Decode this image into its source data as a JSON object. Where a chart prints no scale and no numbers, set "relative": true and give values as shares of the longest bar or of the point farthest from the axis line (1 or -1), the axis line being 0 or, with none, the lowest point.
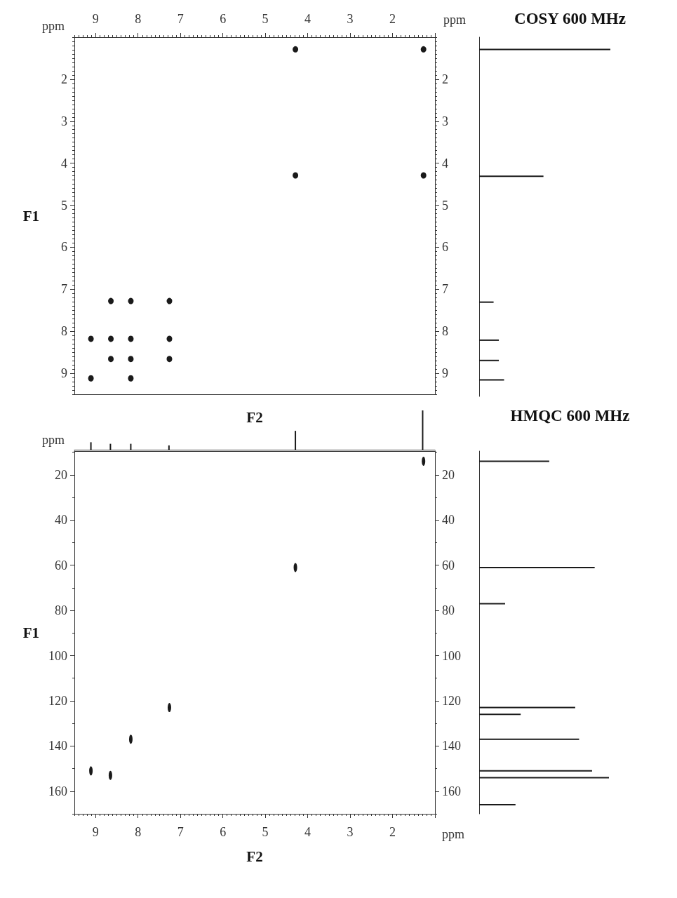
{
  "chart_data": [
    {
      "type": "scatter",
      "xlabel": "F2",
      "x2label": "ppm",
      "ylabel": "F1",
      "annotations": [
        "ppm"
      ],
      "x": [
        4.29,
        1.27,
        4.29,
        1.27,
        8.64,
        8.17,
        7.26,
        9.11,
        8.64,
        8.17,
        7.26,
        8.64,
        8.17,
        7.26,
        9.11,
        8.17
      ],
      "values": [
        1.29,
        1.29,
        4.29,
        4.29,
        7.28,
        7.28,
        7.28,
        8.18,
        8.18,
        8.18,
        8.18,
        8.66,
        8.66,
        8.66,
        9.12,
        9.12
      ],
      "color": "#1a1a1a",
      "marker": "circle",
      "xlim": [
        9.5,
        1.0
      ],
      "x2lim": [
        9.5,
        1.0
      ],
      "x2ticks": [
        9,
        8,
        7,
        6,
        5,
        4,
        3,
        2,
        {
          "value": 1,
          "label": null
        }
      ],
      "ylim": [
        9.5,
        1.0
      ],
      "yticks": [
        2,
        3,
        4,
        5,
        6,
        7,
        8,
        9
      ],
      "y2lim": [
        9.5,
        1.0
      ],
      "y2ticks": [
        2,
        3,
        4,
        5,
        6,
        7,
        8,
        9
      ]
    },
    {
      "type": "bar",
      "orientation": "horizontal",
      "relative": true,
      "title": "COSY 600 MHz",
      "x": [
        1.29,
        4.29,
        7.27,
        8.17,
        8.65,
        9.11
      ],
      "values": [
        1,
        0.49,
        0.11,
        0.15,
        0.15,
        0.19
      ],
      "color": "#1a1a1a",
      "ylim": [
        9.5,
        1.0
      ]
    },
    {
      "type": "bar",
      "relative": true,
      "x": [
        9.11,
        8.65,
        8.17,
        7.27,
        4.29,
        1.29
      ],
      "values": [
        0.19,
        0.15,
        0.15,
        0.11,
        0.48,
        1
      ],
      "color": "#1a1a1a",
      "xlim": [
        9.5,
        1.0
      ]
    },
    {
      "type": "scatter",
      "xlabel": "F2",
      "ylabel": "F1",
      "annotations": [
        "ppm",
        "ppm"
      ],
      "x": [
        1.27,
        4.29,
        7.26,
        8.17,
        9.11,
        8.65
      ],
      "values": [
        14,
        61,
        123,
        137,
        151,
        153
      ],
      "color": "#1a1a1a",
      "marker": "circle",
      "xlim": [
        9.5,
        1.0
      ],
      "xticks": [
        9,
        8,
        7,
        6,
        5,
        4,
        3,
        2,
        {
          "value": 1,
          "label": null
        }
      ],
      "ylim": [
        170,
        9.5
      ],
      "yticks": [
        20,
        40,
        60,
        80,
        100,
        120,
        140,
        160
      ],
      "y2lim": [
        170,
        9.5
      ],
      "y2ticks": [
        20,
        40,
        60,
        80,
        100,
        120,
        140,
        160
      ]
    },
    {
      "type": "bar",
      "orientation": "horizontal",
      "relative": true,
      "title": "HMQC 600 MHz",
      "x": [
        14,
        61,
        77,
        123,
        126,
        137,
        151,
        154,
        166
      ],
      "values": [
        0.54,
        0.89,
        0.2,
        0.74,
        0.32,
        0.77,
        0.87,
        1,
        0.28
      ],
      "color": "#1a1a1a",
      "ylim": [
        170,
        9.5
      ]
    }
  ]
}
